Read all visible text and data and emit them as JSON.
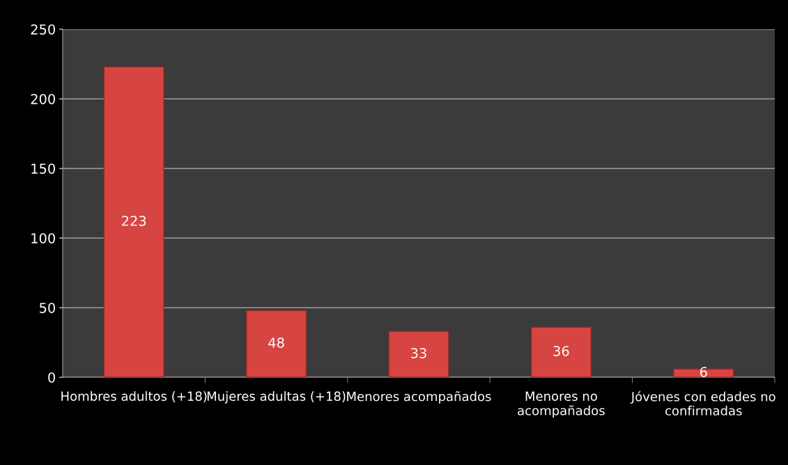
{
  "chart_data": {
    "type": "bar",
    "categories": [
      "Hombres adultos (+18)",
      "Mujeres adultas (+18)",
      "Menores acompañados",
      "Menores no acompañados",
      "Jóvenes con edades no confirmadas"
    ],
    "values": [
      223,
      48,
      33,
      36,
      6
    ],
    "color": "#d64542",
    "ylim": [
      0,
      250
    ],
    "yticks": [
      0,
      50,
      100,
      150,
      200,
      250
    ],
    "grid": "y",
    "data_labels": true
  }
}
